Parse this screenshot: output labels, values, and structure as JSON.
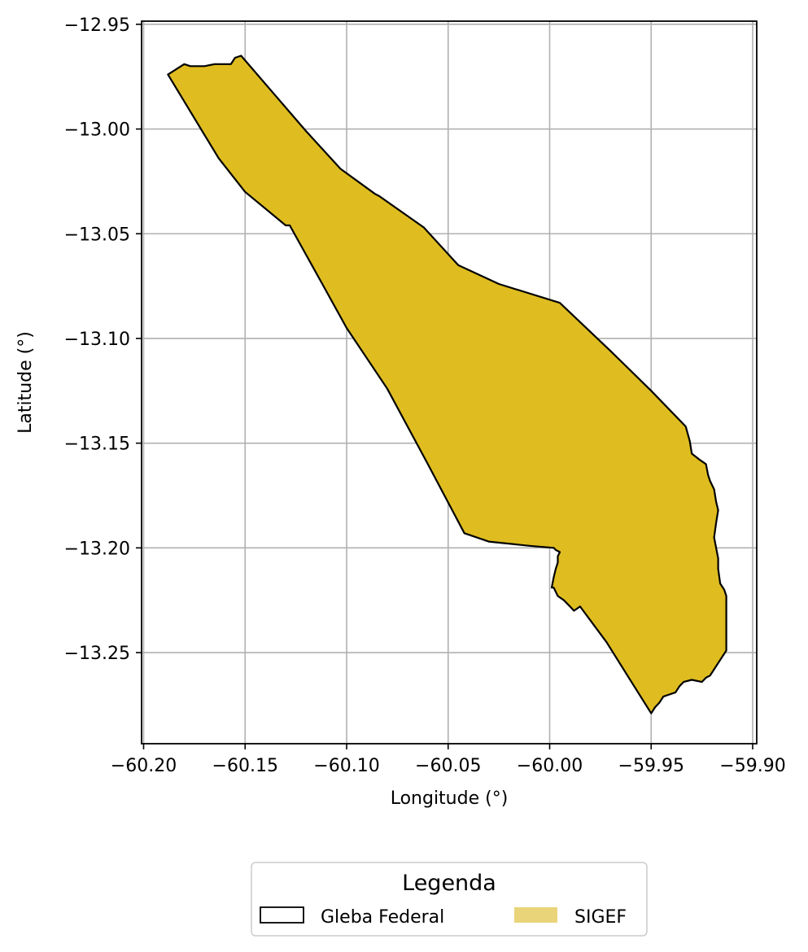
{
  "chart_data": {
    "type": "map",
    "xlabel": "Longitude (°)",
    "ylabel": "Latitude (°)",
    "xlim": [
      -60.201,
      -59.898
    ],
    "ylim": [
      -13.2935,
      -12.9485
    ],
    "xticks": [
      -60.2,
      -60.15,
      -60.1,
      -60.05,
      -60.0,
      -59.95,
      -59.9
    ],
    "xtick_labels": [
      "−60.20",
      "−60.15",
      "−60.10",
      "−60.05",
      "−60.00",
      "−59.95",
      "−59.90"
    ],
    "yticks": [
      -12.95,
      -13.0,
      -13.05,
      -13.1,
      -13.15,
      -13.2,
      -13.25
    ],
    "ytick_labels": [
      "−12.95",
      "−13.00",
      "−13.05",
      "−13.10",
      "−13.15",
      "−13.20",
      "−13.25"
    ],
    "grid": true,
    "layers": [
      {
        "name": "Gleba Federal",
        "fill": "#ffffff",
        "fill_opacity": 0,
        "stroke": "#000000",
        "legend_swatch": "outline",
        "polygon": [
          [
            -60.188,
            -12.974
          ],
          [
            -60.18,
            -12.969
          ],
          [
            -60.177,
            -12.97
          ],
          [
            -60.174,
            -12.97
          ],
          [
            -60.172,
            -12.97
          ],
          [
            -60.17,
            -12.97
          ],
          [
            -60.165,
            -12.969
          ],
          [
            -60.16,
            -12.969
          ],
          [
            -60.157,
            -12.969
          ],
          [
            -60.155,
            -12.966
          ],
          [
            -60.152,
            -12.965
          ],
          [
            -60.136,
            -12.983
          ],
          [
            -60.12,
            -13.001
          ],
          [
            -60.103,
            -13.019
          ],
          [
            -60.086,
            -13.031
          ],
          [
            -60.084,
            -13.032
          ],
          [
            -60.062,
            -13.047
          ],
          [
            -60.045,
            -13.065
          ],
          [
            -60.025,
            -13.074
          ],
          [
            -59.995,
            -13.083
          ],
          [
            -59.97,
            -13.106
          ],
          [
            -59.95,
            -13.125
          ],
          [
            -59.933,
            -13.142
          ],
          [
            -59.931,
            -13.149
          ],
          [
            -59.93,
            -13.155
          ],
          [
            -59.926,
            -13.158
          ],
          [
            -59.923,
            -13.16
          ],
          [
            -59.922,
            -13.165
          ],
          [
            -59.921,
            -13.168
          ],
          [
            -59.919,
            -13.172
          ],
          [
            -59.918,
            -13.178
          ],
          [
            -59.917,
            -13.182
          ],
          [
            -59.918,
            -13.188
          ],
          [
            -59.919,
            -13.195
          ],
          [
            -59.918,
            -13.2
          ],
          [
            -59.917,
            -13.205
          ],
          [
            -59.917,
            -13.21
          ],
          [
            -59.916,
            -13.217
          ],
          [
            -59.914,
            -13.22
          ],
          [
            -59.913,
            -13.223
          ],
          [
            -59.913,
            -13.235
          ],
          [
            -59.913,
            -13.249
          ],
          [
            -59.915,
            -13.252
          ],
          [
            -59.917,
            -13.255
          ],
          [
            -59.919,
            -13.258
          ],
          [
            -59.921,
            -13.261
          ],
          [
            -59.923,
            -13.262
          ],
          [
            -59.925,
            -13.264
          ],
          [
            -59.93,
            -13.263
          ],
          [
            -59.934,
            -13.264
          ],
          [
            -59.936,
            -13.266
          ],
          [
            -59.938,
            -13.269
          ],
          [
            -59.941,
            -13.27
          ],
          [
            -59.944,
            -13.271
          ],
          [
            -59.946,
            -13.274
          ],
          [
            -59.948,
            -13.276
          ],
          [
            -59.95,
            -13.279
          ],
          [
            -59.961,
            -13.262
          ],
          [
            -59.972,
            -13.245
          ],
          [
            -59.985,
            -13.228
          ],
          [
            -59.988,
            -13.23
          ],
          [
            -59.99,
            -13.228
          ],
          [
            -59.993,
            -13.225
          ],
          [
            -59.996,
            -13.223
          ],
          [
            -59.998,
            -13.219
          ],
          [
            -59.999,
            -13.219
          ],
          [
            -59.998,
            -13.214
          ],
          [
            -59.997,
            -13.21
          ],
          [
            -59.996,
            -13.207
          ],
          [
            -59.996,
            -13.204
          ],
          [
            -59.995,
            -13.202
          ],
          [
            -59.997,
            -13.201
          ],
          [
            -59.998,
            -13.2
          ],
          [
            -60.01,
            -13.199
          ],
          [
            -60.03,
            -13.197
          ],
          [
            -60.042,
            -13.193
          ],
          [
            -60.06,
            -13.16
          ],
          [
            -60.08,
            -13.124
          ],
          [
            -60.1,
            -13.095
          ],
          [
            -60.112,
            -13.074
          ],
          [
            -60.128,
            -13.046
          ],
          [
            -60.13,
            -13.046
          ],
          [
            -60.15,
            -13.03
          ],
          [
            -60.163,
            -13.014
          ],
          [
            -60.188,
            -12.974
          ]
        ]
      },
      {
        "name": "SIGEF",
        "fill": "#dfbd20",
        "legend_swatch_color": "#ead47a",
        "stroke": "none",
        "same_outline_as": "Gleba Federal"
      }
    ],
    "legend": {
      "title": "Legenda",
      "placement": "bottom-center, below axes",
      "entries": [
        "Gleba Federal",
        "SIGEF"
      ]
    }
  }
}
